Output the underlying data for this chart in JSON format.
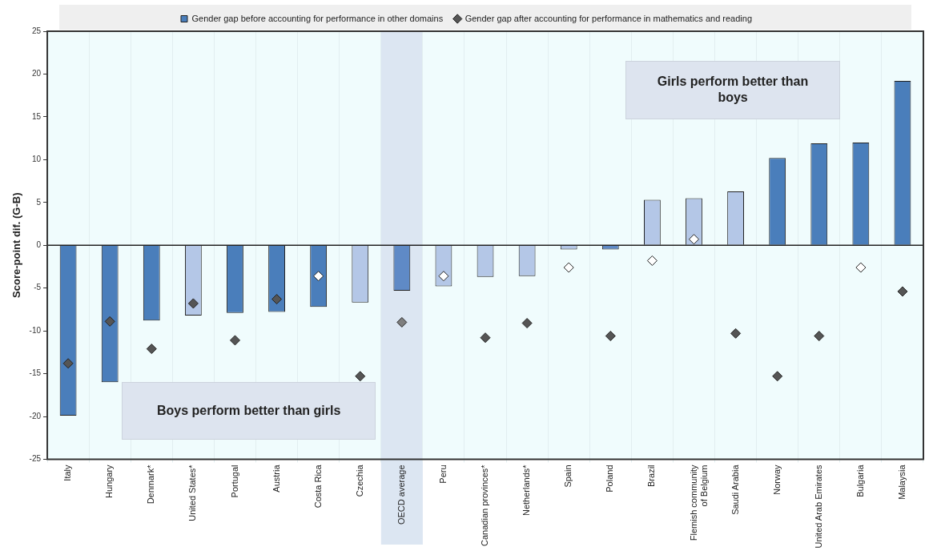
{
  "chart_data": {
    "type": "bar",
    "ylabel": "Score-point dif. (G-B)",
    "categories": [
      "Italy",
      "Hungary",
      "Denmark*",
      "United States*",
      "Portugal",
      "Austria",
      "Costa Rica",
      "Czechia",
      "OECD average",
      "Peru",
      "Canadian provinces*",
      "Netherlands*",
      "Spain",
      "Poland",
      "Brazil",
      "Flemish community of Belgium",
      "Saudi Arabia",
      "Norway",
      "United Arab Emirates",
      "Bulgaria",
      "Malaysia"
    ],
    "series": [
      {
        "name": "Gender gap before accounting for performance in other domains",
        "color": "#4a7ebb",
        "colors": [
          "#4a7ebb",
          "#4a7ebb",
          "#4a7ebb",
          "#b4c7e7",
          "#4a7ebb",
          "#4a7ebb",
          "#4a7ebb",
          "#b4c7e7",
          "#5f8ac6",
          "#b4c7e7",
          "#b4c7e7",
          "#b4c7e7",
          "#b4c7e7",
          "#5f8ac6",
          "#b4c7e7",
          "#b4c7e7",
          "#b4c7e7",
          "#4a7ebb",
          "#4a7ebb",
          "#4a7ebb",
          "#4a7ebb"
        ],
        "values": [
          -19.9,
          -16,
          -8.8,
          -8.2,
          -7.9,
          -7.8,
          -7.2,
          -6.7,
          -5.3,
          -4.8,
          -3.7,
          -3.6,
          -0.5,
          -0.5,
          5.3,
          5.5,
          6.3,
          10.2,
          11.9,
          12,
          19.2
        ]
      },
      {
        "name": "Gender gap after accounting for performance in mathematics and reading",
        "type": "scatter",
        "marker": "diamond",
        "color": "#555555",
        "colors": [
          "#555555",
          "#555555",
          "#555555",
          "#555555",
          "#555555",
          "#555555",
          "#ffffff",
          "#555555",
          "#7f7f7f",
          "#ffffff",
          "#555555",
          "#555555",
          "#ffffff",
          "#555555",
          "#ffffff",
          "#ffffff",
          "#555555",
          "#555555",
          "#555555",
          "#ffffff",
          "#555555"
        ],
        "values": [
          -13.8,
          -8.9,
          -12.1,
          -6.8,
          -11.1,
          -6.3,
          -3.6,
          -15.3,
          -9,
          -3.6,
          -10.8,
          -9.1,
          -2.6,
          -10.6,
          -1.8,
          0.7,
          -10.3,
          -15.3,
          -10.6,
          -2.6,
          -5.4
        ]
      }
    ],
    "ylim": [
      -25,
      25
    ],
    "yticks": [
      -25,
      -20,
      -15,
      -10,
      -5,
      0,
      5,
      10,
      15,
      20,
      25
    ],
    "grid": "x",
    "legend": "top",
    "bands": [
      {
        "axis": "x",
        "from": "OECD average",
        "to": "OECD average",
        "color": "#dce6f2"
      }
    ],
    "annotations": [
      "Girls perform better than boys",
      "Boys perform better than girls"
    ]
  }
}
